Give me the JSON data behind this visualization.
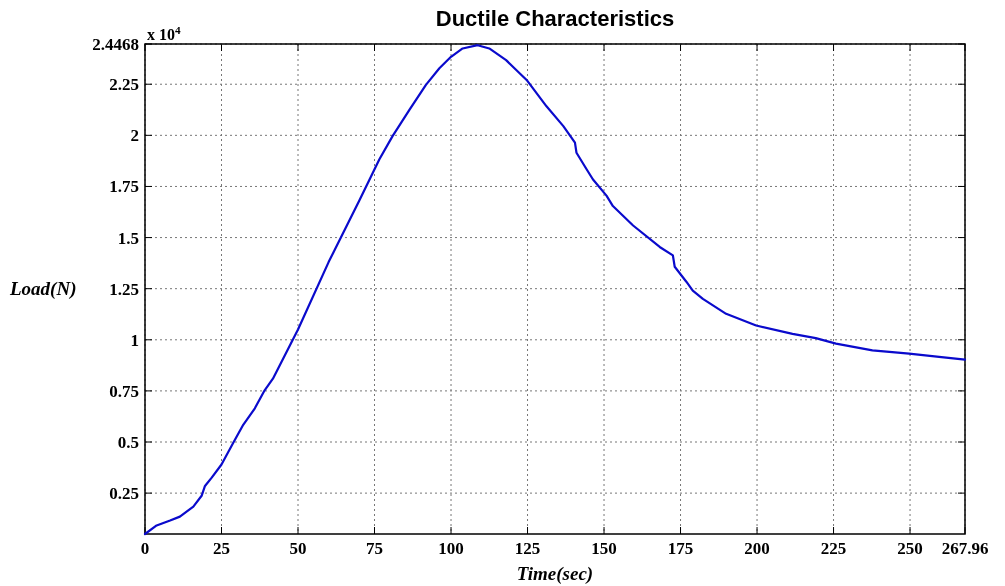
{
  "chart_data": {
    "type": "line",
    "title": "Ductile Characteristics",
    "xlabel": "Time(sec)",
    "ylabel": "Load(N)",
    "annotations": [
      "x 10$^{4}$"
    ],
    "x": [
      0,
      3.8,
      8.2,
      11.4,
      15.8,
      18.5,
      19.6,
      21.8,
      25,
      28.8,
      32.1,
      35.9,
      39.1,
      41.8,
      50,
      60,
      70,
      76.6,
      80.9,
      86.4,
      91.8,
      96.2,
      100,
      103.8,
      108.7,
      112.5,
      118,
      124.7,
      131.2,
      136.7,
      140.5,
      141,
      144.3,
      146.4,
      150.8,
      152.9,
      159.5,
      168.2,
      172.5,
      173.1,
      176.9,
      179,
      182.3,
      189.9,
      199.7,
      211.6,
      219.2,
      225.8,
      237.7,
      249.7,
      259.5,
      267.96
    ],
    "series": [
      {
        "color": "#0a0acc",
        "values": [
          0.05,
          0.092,
          0.116,
          0.135,
          0.184,
          0.237,
          0.285,
          0.326,
          0.39,
          0.495,
          0.584,
          0.665,
          0.753,
          0.81,
          1.05,
          1.38,
          1.68,
          1.883,
          1.996,
          2.125,
          2.247,
          2.328,
          2.384,
          2.425,
          2.441,
          2.425,
          2.368,
          2.271,
          2.142,
          2.045,
          1.964,
          1.915,
          1.834,
          1.784,
          1.705,
          1.654,
          1.559,
          1.454,
          1.413,
          1.357,
          1.284,
          1.24,
          1.2,
          1.127,
          1.07,
          1.029,
          1.008,
          0.981,
          0.948,
          0.932,
          0.916,
          0.903
        ]
      }
    ],
    "xlim": [
      0,
      267.96
    ],
    "xticks": [
      0,
      25,
      50,
      75,
      100,
      125,
      150,
      175,
      200,
      225,
      250,
      267.96
    ],
    "ylim": [
      0.05,
      2.4468
    ],
    "yticks": [
      0.25,
      0.5,
      0.75,
      1,
      1.25,
      1.5,
      1.75,
      2,
      2.25,
      2.4468
    ],
    "grid": true,
    "marker": "none",
    "line_style": "solid"
  }
}
